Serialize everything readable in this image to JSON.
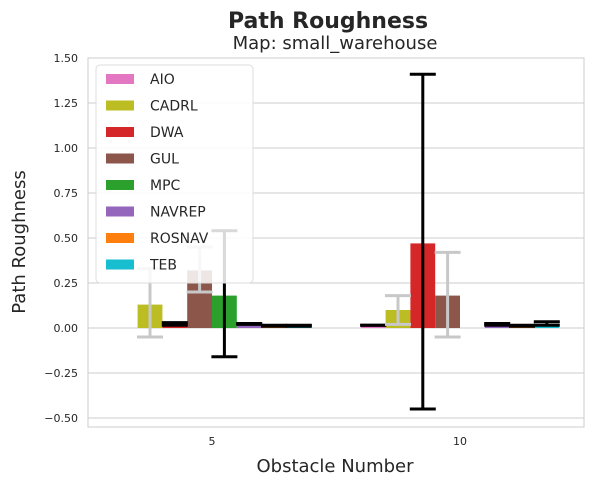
{
  "chart_data": {
    "type": "bar",
    "title": "Path Roughness",
    "subtitle": "Map: small_warehouse",
    "xlabel": "Obstacle Number",
    "ylabel": "Path Roughness",
    "categories": [
      "5",
      "10"
    ],
    "ylim": [
      -0.55,
      1.5
    ],
    "yticks": [
      -0.5,
      -0.25,
      0.0,
      0.25,
      0.5,
      0.75,
      1.0,
      1.25,
      1.5
    ],
    "ytick_labels": [
      "−0.50",
      "−0.25",
      "0.00",
      "0.25",
      "0.50",
      "0.75",
      "1.00",
      "1.25",
      "1.50"
    ],
    "grid": true,
    "legend_position": "top-left",
    "series": [
      {
        "name": "AIO",
        "color": "#e377c2",
        "values": [
          null,
          0.015
        ],
        "err_low": [
          null,
          0.015
        ],
        "err_high": [
          null,
          0.015
        ],
        "err_color": "#000000"
      },
      {
        "name": "CADRL",
        "color": "#bcbd22",
        "values": [
          0.13,
          0.1
        ],
        "err_low": [
          -0.05,
          0.02
        ],
        "err_high": [
          0.33,
          0.18
        ],
        "err_color": "#c8c8c8"
      },
      {
        "name": "DWA",
        "color": "#d62728",
        "values": [
          0.02,
          0.47
        ],
        "err_low": [
          0.015,
          -0.45
        ],
        "err_high": [
          0.03,
          1.41
        ],
        "err_color": "#000000"
      },
      {
        "name": "GUL",
        "color": "#8c564b",
        "values": [
          0.32,
          0.18
        ],
        "err_low": [
          0.2,
          -0.05
        ],
        "err_high": [
          0.45,
          0.42
        ],
        "err_color": "#c8c8c8"
      },
      {
        "name": "MPC",
        "color": "#2ca02c",
        "values": [
          0.18,
          null
        ],
        "err_low": [
          -0.16,
          null
        ],
        "err_high": [
          0.54,
          null
        ],
        "err_color": "#000000"
      },
      {
        "name": "NAVREP",
        "color": "#9467bd",
        "values": [
          0.02,
          0.02
        ],
        "err_low": [
          0.02,
          0.015
        ],
        "err_high": [
          0.025,
          0.025
        ],
        "err_color": "#000000"
      },
      {
        "name": "ROSNAV",
        "color": "#ff7f0e",
        "values": [
          0.01,
          0.01
        ],
        "err_low": [
          0.01,
          0.01
        ],
        "err_high": [
          0.015,
          0.015
        ],
        "err_color": "#000000"
      },
      {
        "name": "TEB",
        "color": "#17becf",
        "values": [
          0.01,
          0.02
        ],
        "err_low": [
          0.01,
          0.015
        ],
        "err_high": [
          0.015,
          0.035
        ],
        "err_color": "#000000"
      }
    ]
  }
}
